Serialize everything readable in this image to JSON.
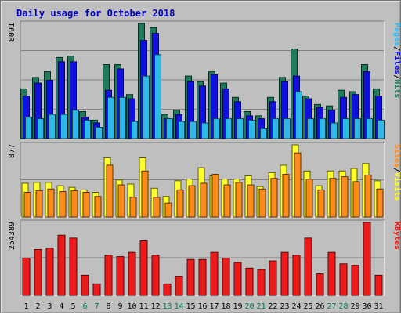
{
  "chart_data": {
    "type": "bar",
    "title": "Daily usage for October 2018",
    "categories": [
      "1",
      "2",
      "3",
      "4",
      "5",
      "6",
      "7",
      "8",
      "9",
      "10",
      "11",
      "12",
      "13",
      "14",
      "15",
      "16",
      "17",
      "18",
      "19",
      "20",
      "21",
      "22",
      "23",
      "24",
      "25",
      "26",
      "27",
      "28",
      "29",
      "30",
      "31"
    ],
    "weekend_days": [
      "6",
      "7",
      "13",
      "14",
      "20",
      "21",
      "27",
      "28"
    ],
    "colors": {
      "title": "#0000c0",
      "weekend_label": "#007c45",
      "weekday_label": "#000000",
      "hits": "#1e7a5a",
      "files": "#1010e0",
      "pages": "#2fb8ea",
      "visits": "#ffff2a",
      "sites": "#ff8c1a",
      "kbytes": "#ee1a1a"
    },
    "panels": [
      {
        "id": "hits-files-pages",
        "max_label": "8091",
        "ylim": [
          0,
          8091
        ],
        "legend": [
          {
            "label": "Hits",
            "color": "#1e7a5a"
          },
          {
            "label": "Files",
            "color": "#1010e0"
          },
          {
            "label": "Pages",
            "color": "#2fb8ea"
          }
        ],
        "series": [
          {
            "name": "Hits",
            "values": [
              3500,
              4300,
              4700,
              5700,
              5800,
              1900,
              1300,
              5200,
              5200,
              3100,
              8091,
              7800,
              1700,
              2000,
              4400,
              4000,
              4700,
              3900,
              2900,
              1900,
              1600,
              2900,
              4300,
              6300,
              3000,
              2400,
              2300,
              3400,
              3300,
              5200,
              3500
            ]
          },
          {
            "name": "Files",
            "values": [
              3000,
              3900,
              4100,
              5400,
              5400,
              1500,
              1100,
              3400,
              4900,
              2800,
              6900,
              7400,
              1400,
              1700,
              4000,
              3700,
              4500,
              3500,
              2600,
              1600,
              1400,
              2600,
              4000,
              4400,
              2800,
              2200,
              2000,
              2900,
              3100,
              4700,
              3000
            ]
          },
          {
            "name": "Pages",
            "values": [
              1500,
              1400,
              1700,
              1700,
              2000,
              1300,
              800,
              2900,
              2900,
              1200,
              4400,
              5900,
              1400,
              1200,
              1200,
              1100,
              1400,
              1400,
              1400,
              1300,
              700,
              1400,
              1400,
              3300,
              1400,
              1400,
              1100,
              1400,
              1400,
              1400,
              1300
            ]
          }
        ]
      },
      {
        "id": "visits-sites",
        "max_label": "877",
        "ylim": [
          0,
          877
        ],
        "legend": [
          {
            "label": "Visits",
            "color": "#ffff2a"
          },
          {
            "label": "Sites",
            "color": "#ff8c1a"
          }
        ],
        "series": [
          {
            "name": "Visits",
            "values": [
              410,
              420,
              420,
              380,
              360,
              330,
              300,
              720,
              450,
              400,
              720,
              350,
              250,
              440,
              460,
              600,
              500,
              460,
              460,
              500,
              370,
              540,
              630,
              877,
              560,
              380,
              560,
              560,
              590,
              650,
              440
            ]
          },
          {
            "name": "Sites",
            "values": [
              300,
              320,
              340,
              310,
              320,
              300,
              250,
              630,
              390,
              240,
              560,
              240,
              170,
              330,
              380,
              410,
              520,
              390,
              420,
              390,
              340,
              470,
              520,
              780,
              460,
              330,
              470,
              490,
              430,
              510,
              340
            ]
          }
        ]
      },
      {
        "id": "kbytes",
        "max_label": "254389",
        "ylim": [
          0,
          254389
        ],
        "legend": [
          {
            "label": "KBytes",
            "color": "#ee1a1a"
          }
        ],
        "series": [
          {
            "name": "KBytes",
            "values": [
              130000,
              160000,
              165000,
              210000,
              200000,
              70000,
              40000,
              140000,
              135000,
              150000,
              190000,
              140000,
              40000,
              65000,
              125000,
              125000,
              150000,
              130000,
              115000,
              95000,
              90000,
              120000,
              150000,
              140000,
              200000,
              75000,
              150000,
              110000,
              105000,
              254389,
              70000
            ]
          }
        ]
      }
    ]
  }
}
